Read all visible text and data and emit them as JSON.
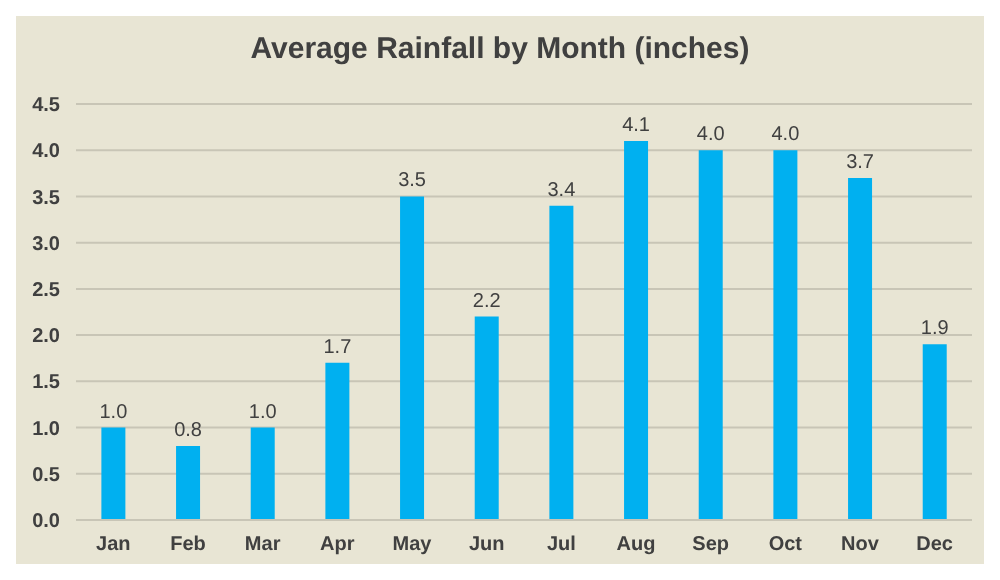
{
  "chart_data": {
    "type": "bar",
    "title": "Average Rainfall by Month (inches)",
    "categories": [
      "Jan",
      "Feb",
      "Mar",
      "Apr",
      "May",
      "Jun",
      "Jul",
      "Aug",
      "Sep",
      "Oct",
      "Nov",
      "Dec"
    ],
    "values": [
      1.0,
      0.8,
      1.0,
      1.7,
      3.5,
      2.2,
      3.4,
      4.1,
      4.0,
      4.0,
      3.7,
      1.9
    ],
    "value_labels": [
      "1.0",
      "0.8",
      "1.0",
      "1.7",
      "3.5",
      "2.2",
      "3.4",
      "4.1",
      "4.0",
      "4.0",
      "3.7",
      "1.9"
    ],
    "color": "#00b0f0",
    "ylim": [
      0,
      4.5
    ],
    "yticks": [
      {
        "value": 0,
        "label": "0.0"
      },
      {
        "value": 0.5,
        "label": "0.5"
      },
      {
        "value": 1,
        "label": "1.0"
      },
      {
        "value": 1.5,
        "label": "1.5"
      },
      {
        "value": 2,
        "label": "2.0"
      },
      {
        "value": 2.5,
        "label": "2.5"
      },
      {
        "value": 3,
        "label": "3.0"
      },
      {
        "value": 3.5,
        "label": "3.5"
      },
      {
        "value": 4,
        "label": "4.0"
      },
      {
        "value": 4.5,
        "label": "4.5"
      }
    ],
    "grid": "y"
  }
}
